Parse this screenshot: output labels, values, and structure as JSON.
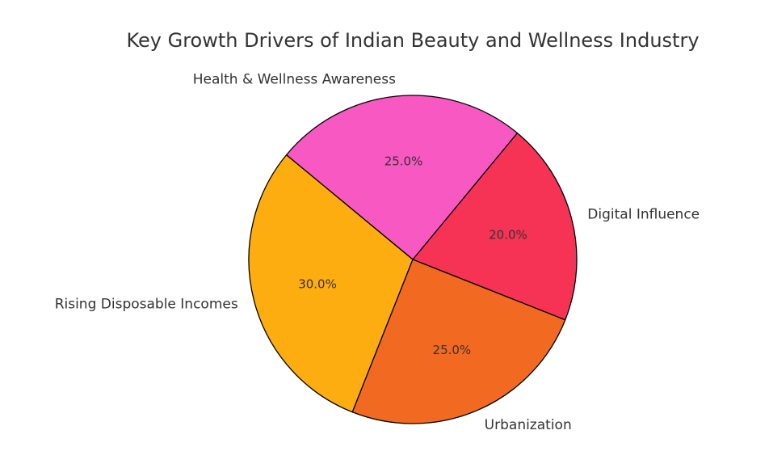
{
  "chart_data": {
    "type": "pie",
    "title": "Key Growth Drivers of Indian Beauty and Wellness Industry",
    "categories": [
      "Digital Influence",
      "Health & Wellness Awareness",
      "Rising Disposable Incomes",
      "Urbanization"
    ],
    "values": [
      20.0,
      25.0,
      30.0,
      25.0
    ],
    "value_labels": [
      "20.0%",
      "25.0%",
      "30.0%",
      "25.0%"
    ],
    "colors": [
      "#f63355",
      "#f858c2",
      "#fdad0f",
      "#f26a21"
    ],
    "start_angle_deg": -21.6,
    "direction": "counterclockwise",
    "legend": "none"
  }
}
